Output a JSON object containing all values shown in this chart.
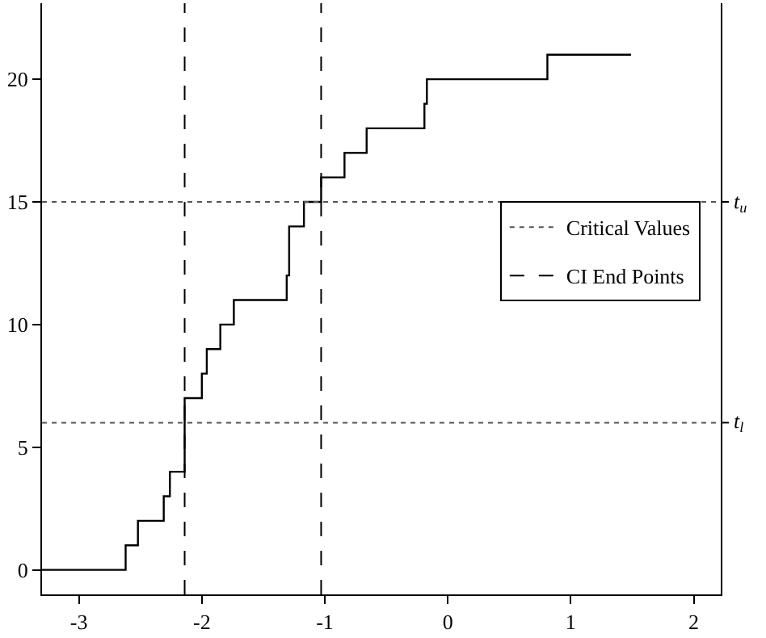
{
  "chart_data": {
    "type": "step",
    "x": [
      -3.3,
      -2.62,
      -2.52,
      -2.31,
      -2.26,
      -2.14,
      -2.0,
      -1.96,
      -1.85,
      -1.74,
      -1.31,
      -1.29,
      -1.17,
      -1.03,
      -0.84,
      -0.66,
      -0.19,
      -0.17,
      0.81,
      1.49
    ],
    "series": [
      {
        "color": "#000000",
        "values": [
          0,
          1,
          2,
          3,
          4,
          7,
          8,
          9,
          10,
          11,
          12,
          14,
          15,
          16,
          17,
          18,
          19,
          20,
          21,
          21
        ]
      }
    ],
    "xlim": [
      -3.3,
      2.22
    ],
    "xticks": [
      -3,
      -2,
      -1,
      0,
      1,
      2
    ],
    "ylim": [
      -1,
      23.1
    ],
    "yticks": [
      0,
      5,
      10,
      15,
      20
    ],
    "annotations": [
      "t$_{u}$",
      "t$_{l}$"
    ],
    "ref_lines": [
      {
        "axis": "y",
        "value": 15,
        "label": "Critical Values",
        "color": "#555555",
        "line_style": "dotted"
      },
      {
        "axis": "y",
        "value": 6,
        "color": "#555555",
        "line_style": "dotted"
      },
      {
        "axis": "x",
        "value": -2.14,
        "label": "CI End Points",
        "color": "#000000",
        "line_style": "dashed"
      },
      {
        "axis": "x",
        "value": -1.03,
        "color": "#000000",
        "line_style": "dashed"
      }
    ],
    "legend": "right"
  }
}
